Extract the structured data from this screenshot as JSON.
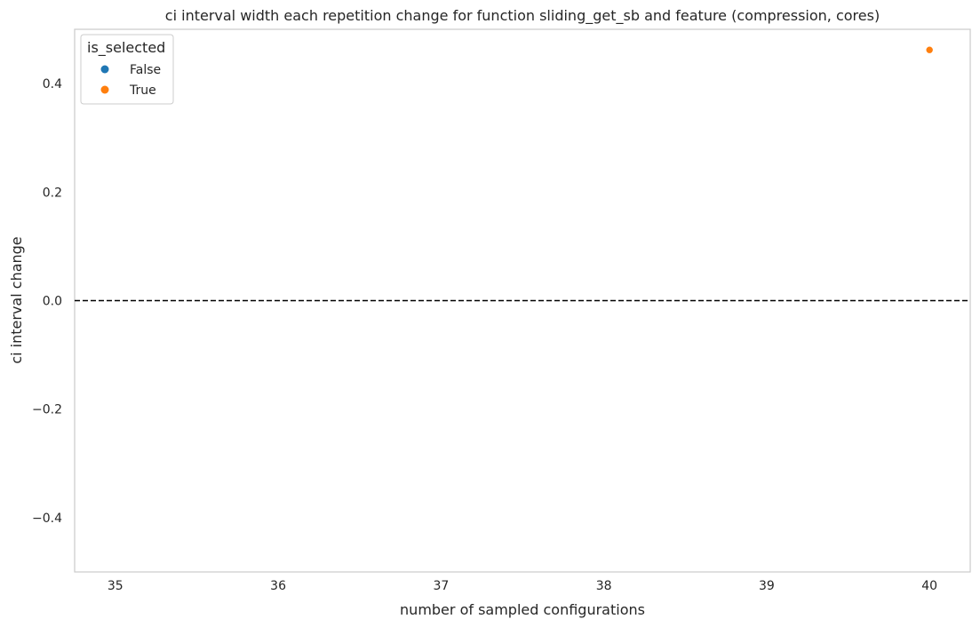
{
  "chart_data": {
    "type": "scatter",
    "title": "ci interval width each repetition change for function sliding_get_sb and feature (compression, cores)",
    "xlabel": "number of sampled configurations",
    "ylabel": "ci interval change",
    "xlim": [
      34.75,
      40.25
    ],
    "ylim": [
      -0.5,
      0.5
    ],
    "x_ticks": [
      35,
      36,
      37,
      38,
      39,
      40
    ],
    "y_ticks": [
      -0.4,
      -0.2,
      0.0,
      0.2,
      0.4
    ],
    "grid": false,
    "reference_line": {
      "y": 0.0,
      "style": "dashed",
      "color": "#000000"
    },
    "legend": {
      "title": "is_selected",
      "placement": "top-left",
      "entries": [
        {
          "label": "False",
          "color": "#1f77b4"
        },
        {
          "label": "True",
          "color": "#ff7f0e"
        }
      ]
    },
    "series": [
      {
        "name": "False",
        "color": "#1f77b4",
        "points": []
      },
      {
        "name": "True",
        "color": "#ff7f0e",
        "points": [
          {
            "x": 40,
            "y": 0.462
          }
        ]
      }
    ]
  }
}
